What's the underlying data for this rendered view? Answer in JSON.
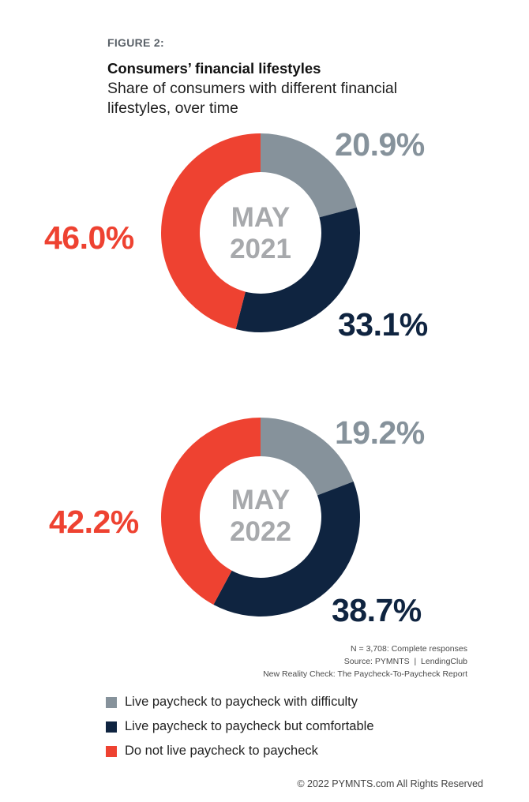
{
  "figure_label": "FIGURE 2:",
  "title": "Consumers’ financial lifestyles",
  "subtitle": "Share of consumers with different financial lifestyles, over time",
  "colors": {
    "difficulty": "#86929b",
    "comfortable": "#0f2440",
    "not_paycheck": "#ee4231",
    "center_text": "#a7a9ac"
  },
  "chart_data": [
    {
      "type": "pie",
      "center_label_line1": "MAY",
      "center_label_line2": "2021",
      "slices": [
        {
          "name": "Live paycheck to paycheck with difficulty",
          "value": 20.9,
          "label": "20.9%",
          "color": "#86929b"
        },
        {
          "name": "Live paycheck to paycheck but comfortable",
          "value": 33.1,
          "label": "33.1%",
          "color": "#0f2440"
        },
        {
          "name": "Do not live paycheck to paycheck",
          "value": 46.0,
          "label": "46.0%",
          "color": "#ee4231"
        }
      ]
    },
    {
      "type": "pie",
      "center_label_line1": "MAY",
      "center_label_line2": "2022",
      "slices": [
        {
          "name": "Live paycheck to paycheck with difficulty",
          "value": 19.2,
          "label": "19.2%",
          "color": "#86929b"
        },
        {
          "name": "Live paycheck to paycheck but comfortable",
          "value": 38.7,
          "label": "38.7%",
          "color": "#0f2440"
        },
        {
          "name": "Do not live paycheck to paycheck",
          "value": 42.2,
          "label": "42.2%",
          "color": "#ee4231"
        }
      ]
    }
  ],
  "notes": {
    "line1": "N = 3,708: Complete responses",
    "line2": "Source: PYMNTS  |  LendingClub",
    "line3": "New Reality Check: The Paycheck-To-Paycheck Report"
  },
  "legend": [
    {
      "label": "Live paycheck to paycheck with difficulty",
      "color": "#86929b"
    },
    {
      "label": "Live paycheck to paycheck but comfortable",
      "color": "#0f2440"
    },
    {
      "label": "Do not live paycheck to paycheck",
      "color": "#ee4231"
    }
  ],
  "copyright": "© 2022 PYMNTS.com All Rights Reserved"
}
